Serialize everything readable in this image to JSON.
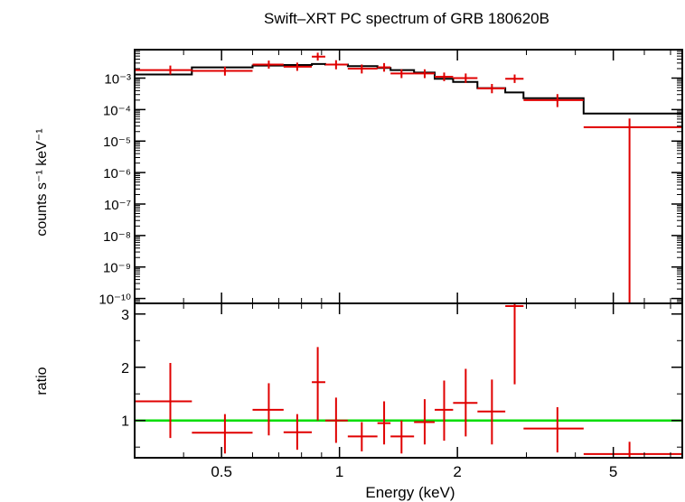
{
  "chart_data": [
    {
      "type": "scatter",
      "title": "Swift–XRT PC spectrum of GRB 180620B",
      "ylabel": "counts s⁻¹ keV⁻¹",
      "xscale": "log",
      "yscale": "log",
      "xlim": [
        0.3,
        7.5
      ],
      "ylim": [
        7e-11,
        0.008
      ],
      "yticks": [
        {
          "v": 0.001,
          "label": "10⁻³"
        },
        {
          "v": 0.0001,
          "label": "10⁻⁴"
        },
        {
          "v": 1e-05,
          "label": "10⁻⁵"
        },
        {
          "v": 1e-06,
          "label": "10⁻⁶"
        },
        {
          "v": 1e-07,
          "label": "10⁻⁷"
        },
        {
          "v": 1e-08,
          "label": "10⁻⁸"
        },
        {
          "v": 1e-09,
          "label": "10⁻⁹"
        },
        {
          "v": 1e-10,
          "label": "10⁻¹⁰"
        }
      ],
      "data_color": "#e00000",
      "model_color": "#000000",
      "data": [
        {
          "xlo": 0.3,
          "xhi": 0.42,
          "x": 0.37,
          "y": 0.0018,
          "ylo": 0.0013,
          "yhi": 0.0025
        },
        {
          "xlo": 0.42,
          "xhi": 0.6,
          "x": 0.51,
          "y": 0.0017,
          "ylo": 0.0012,
          "yhi": 0.0023
        },
        {
          "xlo": 0.6,
          "xhi": 0.72,
          "x": 0.66,
          "y": 0.0027,
          "ylo": 0.002,
          "yhi": 0.0036
        },
        {
          "xlo": 0.72,
          "xhi": 0.85,
          "x": 0.78,
          "y": 0.0023,
          "ylo": 0.0017,
          "yhi": 0.0031
        },
        {
          "xlo": 0.85,
          "xhi": 0.92,
          "x": 0.88,
          "y": 0.0048,
          "ylo": 0.0036,
          "yhi": 0.0064
        },
        {
          "xlo": 0.92,
          "xhi": 1.05,
          "x": 0.98,
          "y": 0.0027,
          "ylo": 0.0019,
          "yhi": 0.0037
        },
        {
          "xlo": 1.05,
          "xhi": 1.25,
          "x": 1.14,
          "y": 0.002,
          "ylo": 0.0014,
          "yhi": 0.0027
        },
        {
          "xlo": 1.25,
          "xhi": 1.35,
          "x": 1.3,
          "y": 0.0022,
          "ylo": 0.0016,
          "yhi": 0.003
        },
        {
          "xlo": 1.35,
          "xhi": 1.55,
          "x": 1.44,
          "y": 0.0014,
          "ylo": 0.001,
          "yhi": 0.0019
        },
        {
          "xlo": 1.55,
          "xhi": 1.75,
          "x": 1.65,
          "y": 0.0014,
          "ylo": 0.001,
          "yhi": 0.0019
        },
        {
          "xlo": 1.75,
          "xhi": 1.95,
          "x": 1.85,
          "y": 0.0011,
          "ylo": 0.0008,
          "yhi": 0.0015
        },
        {
          "xlo": 1.95,
          "xhi": 2.25,
          "x": 2.1,
          "y": 0.001,
          "ylo": 0.0007,
          "yhi": 0.0014
        },
        {
          "xlo": 2.25,
          "xhi": 2.65,
          "x": 2.45,
          "y": 0.00047,
          "ylo": 0.00033,
          "yhi": 0.00065
        },
        {
          "xlo": 2.65,
          "xhi": 2.95,
          "x": 2.8,
          "y": 0.00095,
          "ylo": 0.0007,
          "yhi": 0.0013
        },
        {
          "xlo": 2.95,
          "xhi": 4.2,
          "x": 3.6,
          "y": 0.0002,
          "ylo": 0.00012,
          "yhi": 0.00031
        },
        {
          "xlo": 4.2,
          "xhi": 7.5,
          "x": 5.5,
          "y": 2.75e-05,
          "ylo": 7e-11,
          "yhi": 5.2e-05
        }
      ],
      "model": [
        {
          "xlo": 0.3,
          "xhi": 0.42,
          "y": 0.0013
        },
        {
          "xlo": 0.42,
          "xhi": 0.6,
          "y": 0.0022
        },
        {
          "xlo": 0.6,
          "xhi": 0.72,
          "y": 0.0025
        },
        {
          "xlo": 0.72,
          "xhi": 0.85,
          "y": 0.0026
        },
        {
          "xlo": 0.85,
          "xhi": 0.92,
          "y": 0.0028
        },
        {
          "xlo": 0.92,
          "xhi": 1.05,
          "y": 0.0027
        },
        {
          "xlo": 1.05,
          "xhi": 1.25,
          "y": 0.0024
        },
        {
          "xlo": 1.25,
          "xhi": 1.35,
          "y": 0.0021
        },
        {
          "xlo": 1.35,
          "xhi": 1.55,
          "y": 0.0018
        },
        {
          "xlo": 1.55,
          "xhi": 1.75,
          "y": 0.0015
        },
        {
          "xlo": 1.75,
          "xhi": 1.95,
          "y": 0.00095
        },
        {
          "xlo": 1.95,
          "xhi": 2.25,
          "y": 0.00075
        },
        {
          "xlo": 2.25,
          "xhi": 2.65,
          "y": 0.00048
        },
        {
          "xlo": 2.65,
          "xhi": 2.95,
          "y": 0.00035
        },
        {
          "xlo": 2.95,
          "xhi": 4.2,
          "y": 0.00023
        },
        {
          "xlo": 4.2,
          "xhi": 7.5,
          "y": 7.5e-05
        }
      ]
    },
    {
      "type": "scatter",
      "xlabel": "Energy (keV)",
      "ylabel": "ratio",
      "xscale": "log",
      "xlim": [
        0.3,
        7.5
      ],
      "ylim": [
        0.3,
        3.2
      ],
      "yticks": [
        {
          "v": 1,
          "label": "1"
        },
        {
          "v": 2,
          "label": "2"
        },
        {
          "v": 3,
          "label": "3"
        }
      ],
      "xticks": [
        {
          "v": 0.5,
          "label": "0.5"
        },
        {
          "v": 1,
          "label": "1"
        },
        {
          "v": 2,
          "label": "2"
        },
        {
          "v": 5,
          "label": "5"
        }
      ],
      "reference_line": {
        "y": 1,
        "color": "#00dd00"
      },
      "data_color": "#e00000",
      "data": [
        {
          "xlo": 0.3,
          "xhi": 0.42,
          "x": 0.37,
          "y": 1.36,
          "ylo": 0.67,
          "yhi": 2.08
        },
        {
          "xlo": 0.42,
          "xhi": 0.6,
          "x": 0.51,
          "y": 0.77,
          "ylo": 0.38,
          "yhi": 1.12
        },
        {
          "xlo": 0.6,
          "xhi": 0.72,
          "x": 0.66,
          "y": 1.2,
          "ylo": 0.72,
          "yhi": 1.7
        },
        {
          "xlo": 0.72,
          "xhi": 0.85,
          "x": 0.78,
          "y": 0.78,
          "ylo": 0.45,
          "yhi": 1.12
        },
        {
          "xlo": 0.85,
          "xhi": 0.92,
          "x": 0.88,
          "y": 1.72,
          "ylo": 1.0,
          "yhi": 2.38
        },
        {
          "xlo": 0.92,
          "xhi": 1.05,
          "x": 0.98,
          "y": 1.0,
          "ylo": 0.58,
          "yhi": 1.43
        },
        {
          "xlo": 1.05,
          "xhi": 1.25,
          "x": 1.14,
          "y": 0.7,
          "ylo": 0.42,
          "yhi": 0.97
        },
        {
          "xlo": 1.25,
          "xhi": 1.35,
          "x": 1.3,
          "y": 0.95,
          "ylo": 0.55,
          "yhi": 1.36
        },
        {
          "xlo": 1.35,
          "xhi": 1.55,
          "x": 1.44,
          "y": 0.7,
          "ylo": 0.38,
          "yhi": 1.0
        },
        {
          "xlo": 1.55,
          "xhi": 1.75,
          "x": 1.65,
          "y": 0.97,
          "ylo": 0.55,
          "yhi": 1.4
        },
        {
          "xlo": 1.75,
          "xhi": 1.95,
          "x": 1.85,
          "y": 1.2,
          "ylo": 0.62,
          "yhi": 1.75
        },
        {
          "xlo": 1.95,
          "xhi": 2.25,
          "x": 2.1,
          "y": 1.33,
          "ylo": 0.7,
          "yhi": 1.97
        },
        {
          "xlo": 2.25,
          "xhi": 2.65,
          "x": 2.45,
          "y": 1.17,
          "ylo": 0.55,
          "yhi": 1.77
        },
        {
          "xlo": 2.65,
          "xhi": 2.95,
          "x": 2.8,
          "y": 3.15,
          "ylo": 1.68,
          "yhi": 3.2
        },
        {
          "xlo": 2.95,
          "xhi": 4.2,
          "x": 3.6,
          "y": 0.85,
          "ylo": 0.4,
          "yhi": 1.25
        },
        {
          "xlo": 4.2,
          "xhi": 7.5,
          "x": 5.5,
          "y": 0.37,
          "ylo": 0.3,
          "yhi": 0.6
        }
      ]
    }
  ]
}
